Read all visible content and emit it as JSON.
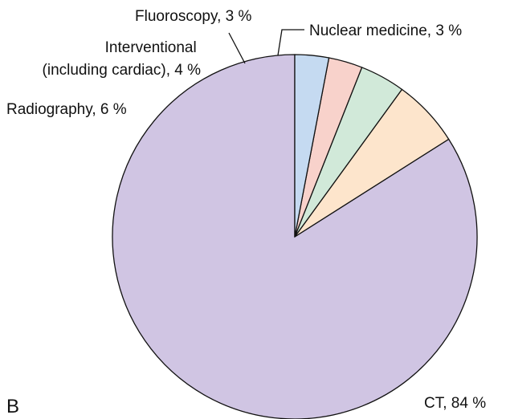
{
  "panel_label": "B",
  "chart_data": {
    "type": "pie",
    "start_angle_deg": 0,
    "direction": "counterclockwise",
    "slices": [
      {
        "label": "CT",
        "value": 84,
        "display": "CT, 84 %",
        "color": "#d0c5e3"
      },
      {
        "label": "Radiography",
        "value": 6,
        "display": "Radiography, 6 %",
        "color": "#fde5cc"
      },
      {
        "label": "Interventional (including cardiac)",
        "value": 4,
        "display_lines": [
          "Interventional",
          "(including cardiac), 4 %"
        ],
        "color": "#d1e9d9"
      },
      {
        "label": "Fluoroscopy",
        "value": 3,
        "display": "Fluoroscopy, 3 %",
        "color": "#f8d2cb"
      },
      {
        "label": "Nuclear medicine",
        "value": 3,
        "display": "Nuclear medicine, 3 %",
        "color": "#c5daf1"
      }
    ],
    "outline_color": "#111111"
  }
}
